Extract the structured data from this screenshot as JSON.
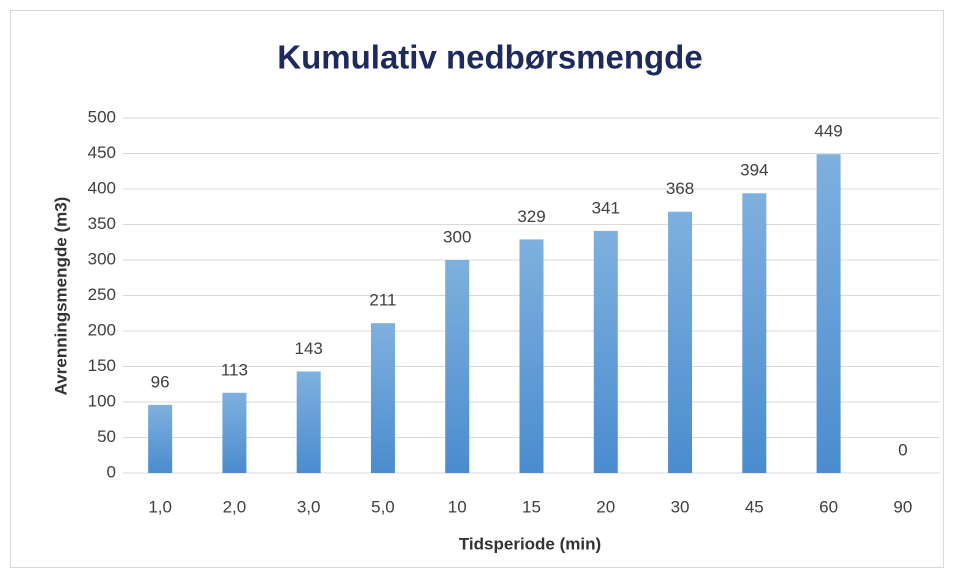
{
  "chart_data": {
    "type": "bar",
    "title": "Kumulativ nedbørsmengde",
    "x_label": "Tidsperiode (min)",
    "y_label": "Avrenningsmengde (m3)",
    "categories": [
      "1,0",
      "2,0",
      "3,0",
      "5,0",
      "10",
      "15",
      "20",
      "30",
      "45",
      "60",
      "90"
    ],
    "values": [
      96,
      113,
      143,
      211,
      300,
      329,
      341,
      368,
      394,
      449,
      0
    ],
    "color": "#5b9bd5",
    "ylim": [
      0,
      500
    ],
    "yticks": [
      0,
      50,
      100,
      150,
      200,
      250,
      300,
      350,
      400,
      450,
      500
    ],
    "grid": true
  }
}
